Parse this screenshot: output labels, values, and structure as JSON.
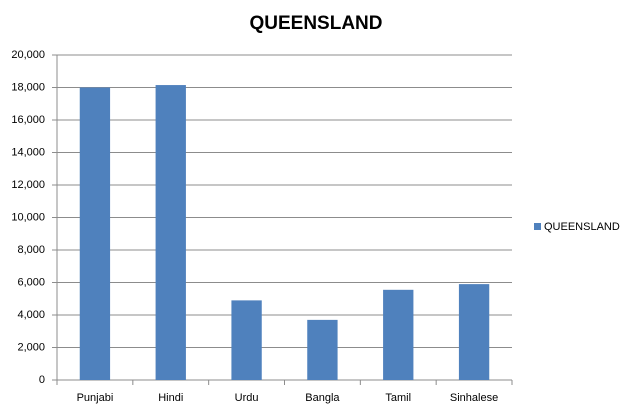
{
  "chart_data": {
    "type": "bar",
    "title": "QUEENSLAND",
    "categories": [
      "Punjabi",
      "Hindi",
      "Urdu",
      "Bangla",
      "Tamil",
      "Sinhalese"
    ],
    "series": [
      {
        "name": "QUEENSLAND",
        "color": "#4f81bd",
        "values": [
          18000,
          18150,
          4900,
          3700,
          5550,
          5900
        ]
      }
    ],
    "ylim": [
      0,
      20000
    ],
    "yticks": [
      0,
      {
        "value": 2000,
        "label": "2,000"
      },
      {
        "value": 4000,
        "label": "4,000"
      },
      {
        "value": 6000,
        "label": "6,000"
      },
      {
        "value": 8000,
        "label": "8,000"
      },
      {
        "value": 10000,
        "label": "10,000"
      },
      {
        "value": 12000,
        "label": "12,000"
      },
      {
        "value": 14000,
        "label": "14,000"
      },
      {
        "value": 16000,
        "label": "16,000"
      },
      {
        "value": 18000,
        "label": "18,000"
      },
      {
        "value": 20000,
        "label": "20,000"
      }
    ],
    "grid": true,
    "legend": "right"
  }
}
